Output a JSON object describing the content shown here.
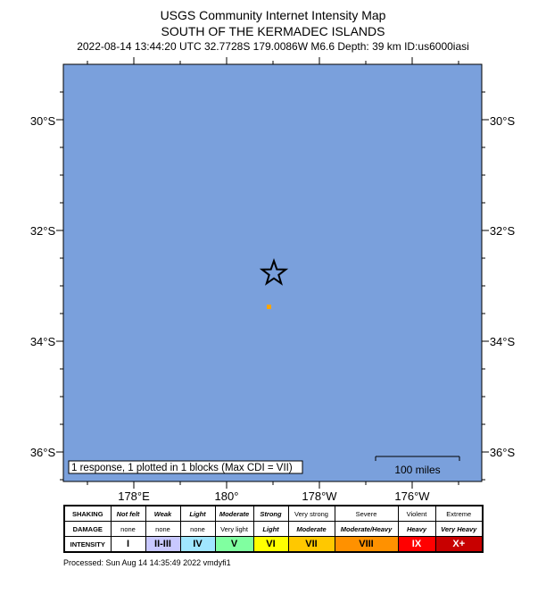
{
  "header": {
    "title": "USGS Community Internet Intensity Map",
    "region": "SOUTH OF THE KERMADEC ISLANDS",
    "event_info": "2022-08-14 13:44:20 UTC 32.7728S 179.0086W M6.6 Depth: 39 km ID:us6000iasi"
  },
  "map": {
    "ocean_color": "#7aa0dc",
    "lat_labels": [
      "30°S",
      "32°S",
      "34°S",
      "36°S"
    ],
    "lon_labels": [
      "178°E",
      "180°",
      "178°W",
      "176°W"
    ],
    "epicenter_icon": "star-icon",
    "response_box_color": "#ffa500",
    "response_note": "1 response, 1 plotted in 1 blocks (Max CDI = VII)",
    "scale_label": "100 miles"
  },
  "legend": {
    "shaking_header": "SHAKING",
    "damage_header": "DAMAGE",
    "intensity_header": "INTENSITY",
    "shaking": [
      "Not felt",
      "Weak",
      "Light",
      "Moderate",
      "Strong",
      "Very strong",
      "Severe",
      "Violent",
      "Extreme"
    ],
    "damage": [
      "none",
      "none",
      "none",
      "Very light",
      "Light",
      "Moderate",
      "Moderate/Heavy",
      "Heavy",
      "Very Heavy"
    ],
    "intensity": [
      "I",
      "II-III",
      "IV",
      "V",
      "VI",
      "VII",
      "VIII",
      "IX",
      "X+"
    ],
    "intensity_colors": [
      "#ffffff",
      "#c8c8ff",
      "#a0e6ff",
      "#80ffa0",
      "#ffff00",
      "#ffc800",
      "#ff9100",
      "#ff0000",
      "#c80000"
    ]
  },
  "footer": {
    "processed": "Processed: Sun Aug 14 14:35:49 2022 vmdyfi1"
  }
}
